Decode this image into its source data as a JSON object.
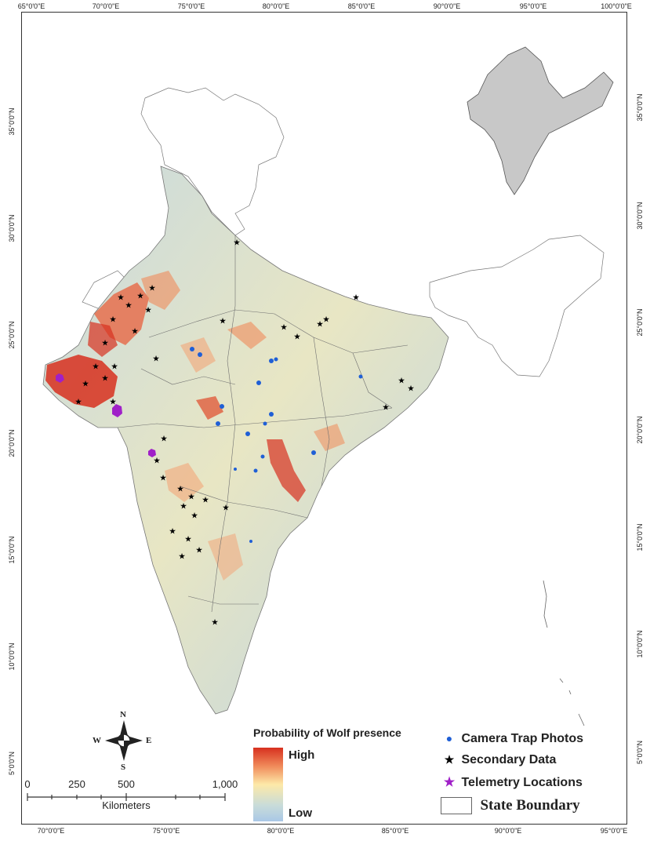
{
  "axes": {
    "top": [
      "65°0'0\"E",
      "70°0'0\"E",
      "75°0'0\"E",
      "80°0'0\"E",
      "85°0'0\"E",
      "90°0'0\"E",
      "95°0'0\"E",
      "100°0'0\"E"
    ],
    "bottom": [
      "70°0'0\"E",
      "75°0'0\"E",
      "80°0'0\"E",
      "85°0'0\"E",
      "90°0'0\"E",
      "95°0'0\"E"
    ],
    "left": [
      "35°0'0\"N",
      "30°0'0\"N",
      "25°0'0\"N",
      "20°0'0\"N",
      "15°0'0\"N",
      "10°0'0\"N",
      "5°0'0\"N"
    ],
    "right": [
      "35°0'0\"N",
      "30°0'0\"N",
      "25°0'0\"N",
      "20°0'0\"N",
      "15°0'0\"N",
      "10°0'0\"N",
      "5°0'0\"N"
    ]
  },
  "legend": {
    "title": "Probability of Wolf presence",
    "high": "High",
    "low": "Low",
    "ramp_colors": [
      "#d7301f",
      "#f08a5a",
      "#fde9a8",
      "#c9dcd9",
      "#a9c8e6"
    ],
    "points": [
      {
        "symbol": "●",
        "label": "Camera Trap Photos",
        "color": "#1f5fd6",
        "icon": "circle-marker"
      },
      {
        "symbol": "★",
        "label": "Secondary Data",
        "color": "#000000",
        "icon": "star-marker"
      },
      {
        "symbol": "★",
        "label": "Telemetry Locations",
        "color": "#a020c8",
        "icon": "star-marker"
      }
    ],
    "boundary": "State Boundary"
  },
  "scalebar": {
    "labels": [
      "0",
      "250",
      "500",
      "1,000"
    ],
    "units": "Kilometers"
  },
  "compass": {
    "n": "N",
    "s": "S",
    "e": "E",
    "w": "W"
  },
  "colors": {
    "camera": "#1f5fd6",
    "secondary": "#000000",
    "telemetry": "#a020c8",
    "high": "#d7301f",
    "low": "#a9c8e6",
    "inset_fill": "#c8c8c8"
  }
}
